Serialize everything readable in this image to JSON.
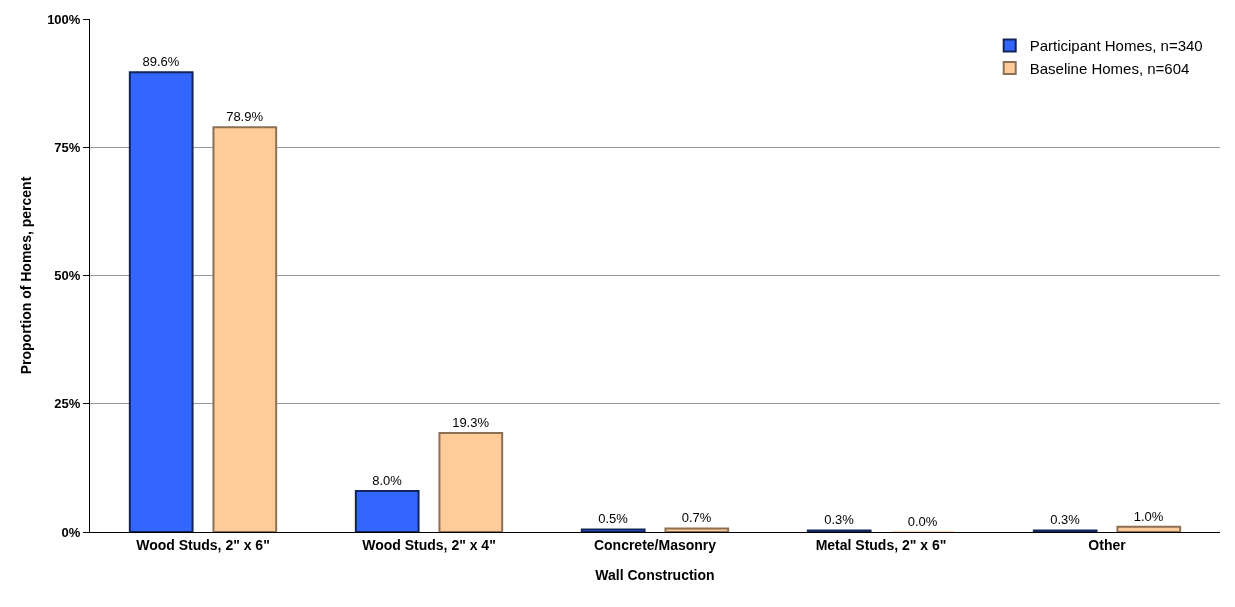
{
  "chart_data": {
    "type": "bar",
    "xlabel": "Wall Construction",
    "ylabel": "Proportion of Homes, percent",
    "categories": [
      "Wood Studs, 2\" x 6\"",
      "Wood Studs, 2\" x 4\"",
      "Concrete/Masonry",
      "Metal Studs, 2\" x 6\"",
      "Other"
    ],
    "series": [
      {
        "name": "Participant Homes, n=340",
        "color": "#3366ff",
        "values": [
          89.6,
          8.0,
          0.5,
          0.3,
          0.3
        ],
        "value_labels": [
          "89.6%",
          "8.0%",
          "0.5%",
          "0.3%",
          "0.3%"
        ]
      },
      {
        "name": "Baseline Homes, n=604",
        "color": "#ffcc99",
        "values": [
          78.9,
          19.3,
          0.7,
          0.0,
          1.0
        ],
        "value_labels": [
          "78.9%",
          "19.3%",
          "0.7%",
          "0.0%",
          "1.0%"
        ]
      }
    ],
    "ylim": [
      0,
      100
    ],
    "yticks": [
      {
        "value": 0,
        "label": "0%"
      },
      {
        "value": 25,
        "label": "25%"
      },
      {
        "value": 50,
        "label": "50%"
      },
      {
        "value": 75,
        "label": "75%"
      },
      {
        "value": 100,
        "label": "100%"
      }
    ],
    "grid": "y",
    "legend": "top right"
  }
}
